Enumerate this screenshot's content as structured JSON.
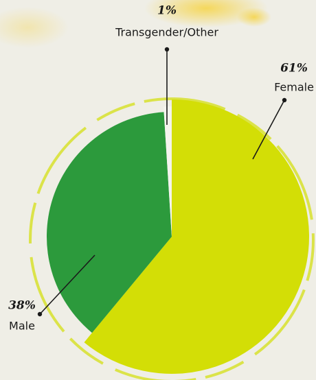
{
  "chart_data": {
    "type": "pie",
    "categories": [
      "Female",
      "Male",
      "Transgender/Other"
    ],
    "values": [
      61,
      38,
      1
    ],
    "value_labels": [
      "61%",
      "38%",
      "1%"
    ],
    "colors": [
      "#d3de06",
      "#2c9a3c",
      "#f4f4ee"
    ]
  }
}
